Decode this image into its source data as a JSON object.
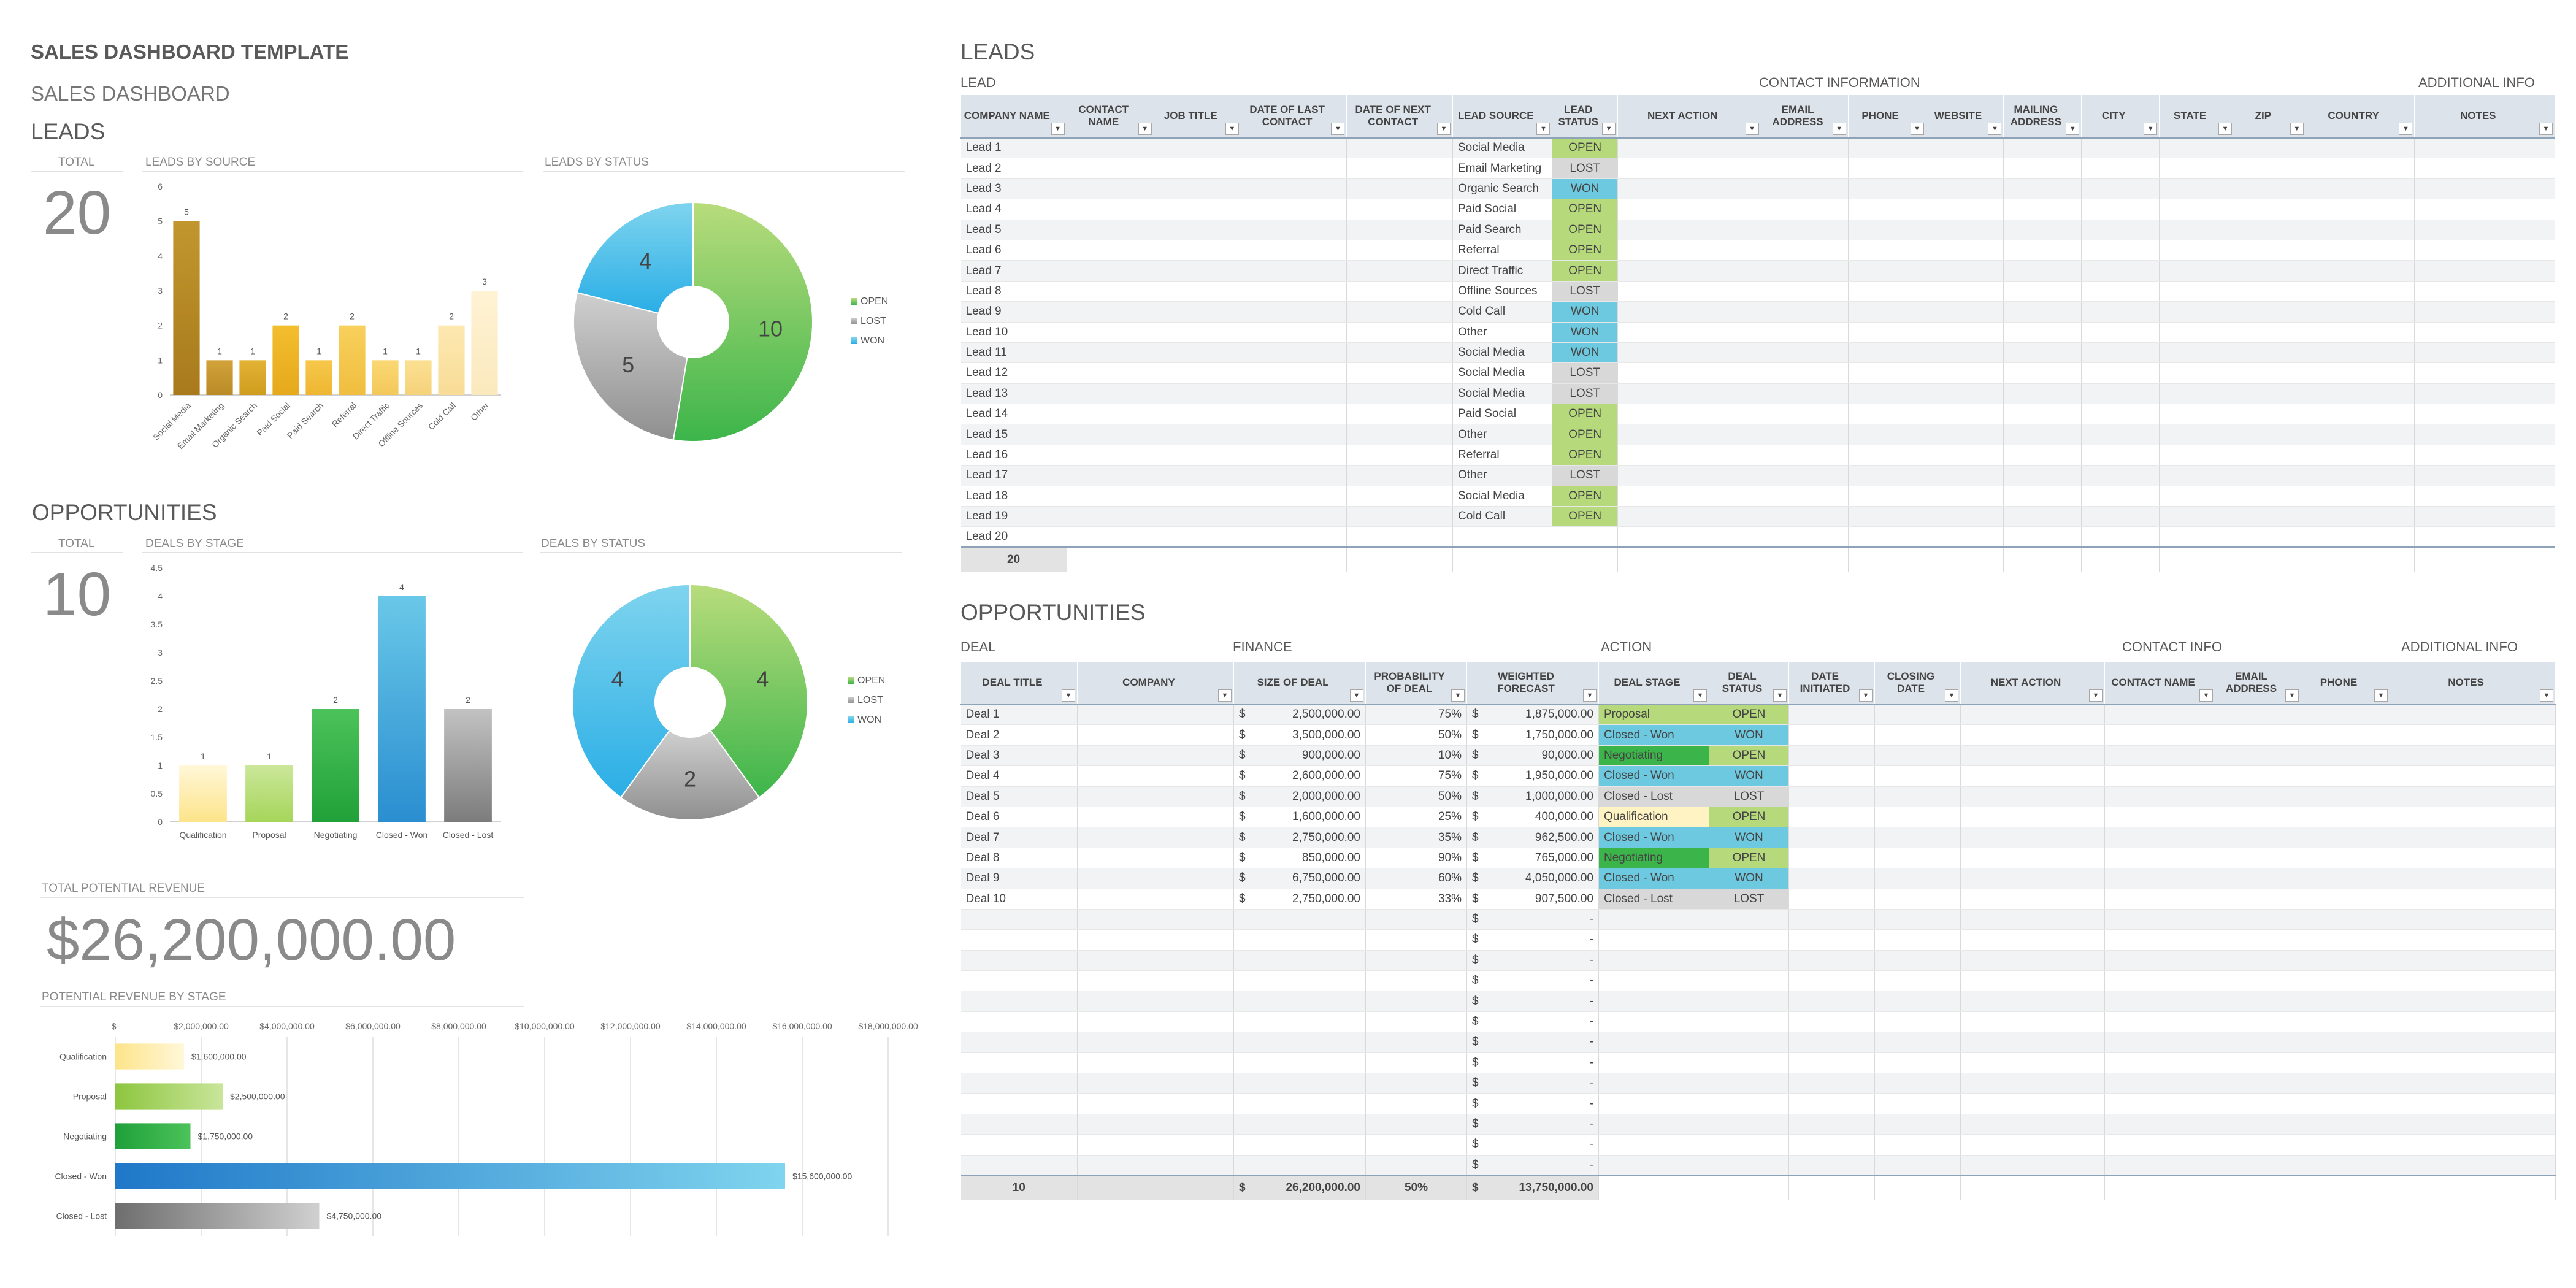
{
  "doc": {
    "title": "SALES DASHBOARD TEMPLATE",
    "subtitle": "SALES DASHBOARD"
  },
  "leads_panel": {
    "heading": "LEADS",
    "total_label": "TOTAL",
    "total": "20",
    "by_source_label": "LEADS BY SOURCE",
    "by_status_label": "LEADS BY STATUS"
  },
  "opps_panel": {
    "heading": "OPPORTUNITIES",
    "total_label": "TOTAL",
    "total": "10",
    "by_stage_label": "DEALS BY STAGE",
    "by_status_label": "DEALS BY STATUS"
  },
  "revenue": {
    "label": "TOTAL POTENTIAL REVENUE",
    "value": "$26,200,000.00",
    "by_stage_label": "POTENTIAL REVENUE BY STAGE"
  },
  "legend": [
    "OPEN",
    "LOST",
    "WON"
  ],
  "colors": {
    "open": "#8dc63f",
    "lost": "#a6a6a6",
    "won": "#3ab7e0",
    "gold": "#b58a2a",
    "header_bg": "#dde3ea"
  },
  "chart_data": [
    {
      "type": "bar",
      "title": "LEADS BY SOURCE",
      "categories": [
        "Social Media",
        "Email Marketing",
        "Organic Search",
        "Paid Social",
        "Paid Search",
        "Referral",
        "Direct Traffic",
        "Offline Sources",
        "Cold Call",
        "Other"
      ],
      "values": [
        5,
        1,
        1,
        2,
        1,
        2,
        1,
        1,
        2,
        3
      ],
      "ylim": [
        0,
        6
      ],
      "yticks": [
        0,
        1,
        2,
        3,
        4,
        5,
        6
      ]
    },
    {
      "type": "pie",
      "title": "LEADS BY STATUS",
      "labels": [
        "OPEN",
        "LOST",
        "WON"
      ],
      "values": [
        10,
        5,
        4
      ]
    },
    {
      "type": "bar",
      "title": "DEALS BY STAGE",
      "categories": [
        "Qualification",
        "Proposal",
        "Negotiating",
        "Closed - Won",
        "Closed - Lost"
      ],
      "values": [
        1,
        1,
        2,
        4,
        2
      ],
      "ylim": [
        0,
        4.5
      ],
      "yticks": [
        0,
        0.5,
        1,
        1.5,
        2,
        2.5,
        3,
        3.5,
        4,
        4.5
      ]
    },
    {
      "type": "pie",
      "title": "DEALS BY STATUS",
      "labels": [
        "OPEN",
        "LOST",
        "WON"
      ],
      "values": [
        4,
        2,
        4
      ]
    },
    {
      "type": "bar",
      "orientation": "horizontal",
      "title": "POTENTIAL REVENUE BY STAGE",
      "categories": [
        "Qualification",
        "Proposal",
        "Negotiating",
        "Closed - Won",
        "Closed - Lost"
      ],
      "values": [
        1600000,
        2500000,
        1750000,
        15600000,
        4750000
      ],
      "value_labels": [
        "$1,600,000.00",
        "$2,500,000.00",
        "$1,750,000.00",
        "$15,600,000.00",
        "$4,750,000.00"
      ],
      "xlim": [
        0,
        18000000
      ],
      "xticks": [
        "$-",
        "$2,000,000.00",
        "$4,000,000.00",
        "$6,000,000.00",
        "$8,000,000.00",
        "$10,000,000.00",
        "$12,000,000.00",
        "$14,000,000.00",
        "$16,000,000.00",
        "$18,000,000.00"
      ]
    }
  ],
  "leads_table": {
    "title": "LEADS",
    "groups": [
      "LEAD",
      "CONTACT INFORMATION",
      "ADDITIONAL INFO"
    ],
    "columns": [
      "COMPANY NAME",
      "CONTACT NAME",
      "JOB TITLE",
      "DATE OF LAST CONTACT",
      "DATE OF NEXT CONTACT",
      "LEAD SOURCE",
      "LEAD STATUS",
      "NEXT ACTION",
      "EMAIL ADDRESS",
      "PHONE",
      "WEBSITE",
      "MAILING ADDRESS",
      "CITY",
      "STATE",
      "ZIP",
      "COUNTRY",
      "NOTES"
    ],
    "rows": [
      [
        "Lead 1",
        "Social Media",
        "OPEN"
      ],
      [
        "Lead 2",
        "Email Marketing",
        "LOST"
      ],
      [
        "Lead 3",
        "Organic Search",
        "WON"
      ],
      [
        "Lead 4",
        "Paid Social",
        "OPEN"
      ],
      [
        "Lead 5",
        "Paid Search",
        "OPEN"
      ],
      [
        "Lead 6",
        "Referral",
        "OPEN"
      ],
      [
        "Lead 7",
        "Direct Traffic",
        "OPEN"
      ],
      [
        "Lead 8",
        "Offline Sources",
        "LOST"
      ],
      [
        "Lead 9",
        "Cold Call",
        "WON"
      ],
      [
        "Lead 10",
        "Other",
        "WON"
      ],
      [
        "Lead 11",
        "Social Media",
        "WON"
      ],
      [
        "Lead 12",
        "Social Media",
        "LOST"
      ],
      [
        "Lead 13",
        "Social Media",
        "LOST"
      ],
      [
        "Lead 14",
        "Paid Social",
        "OPEN"
      ],
      [
        "Lead 15",
        "Other",
        "OPEN"
      ],
      [
        "Lead 16",
        "Referral",
        "OPEN"
      ],
      [
        "Lead 17",
        "Other",
        "LOST"
      ],
      [
        "Lead 18",
        "Social Media",
        "OPEN"
      ],
      [
        "Lead 19",
        "Cold Call",
        "OPEN"
      ],
      [
        "Lead 20",
        "",
        ""
      ]
    ],
    "total": "20"
  },
  "opps_table": {
    "title": "OPPORTUNITIES",
    "groups": [
      "DEAL",
      "FINANCE",
      "ACTION",
      "CONTACT INFO",
      "ADDITIONAL INFO"
    ],
    "columns": [
      "DEAL TITLE",
      "COMPANY",
      "SIZE OF DEAL",
      "PROBABILITY OF DEAL",
      "WEIGHTED FORECAST",
      "DEAL STAGE",
      "DEAL STATUS",
      "DATE INITIATED",
      "CLOSING DATE",
      "NEXT ACTION",
      "CONTACT NAME",
      "EMAIL ADDRESS",
      "PHONE",
      "NOTES"
    ],
    "rows": [
      [
        "Deal 1",
        "2,500,000.00",
        "75%",
        "1,875,000.00",
        "Proposal",
        "OPEN"
      ],
      [
        "Deal 2",
        "3,500,000.00",
        "50%",
        "1,750,000.00",
        "Closed - Won",
        "WON"
      ],
      [
        "Deal 3",
        "900,000.00",
        "10%",
        "90,000.00",
        "Negotiating",
        "OPEN"
      ],
      [
        "Deal 4",
        "2,600,000.00",
        "75%",
        "1,950,000.00",
        "Closed - Won",
        "WON"
      ],
      [
        "Deal 5",
        "2,000,000.00",
        "50%",
        "1,000,000.00",
        "Closed - Lost",
        "LOST"
      ],
      [
        "Deal 6",
        "1,600,000.00",
        "25%",
        "400,000.00",
        "Qualification",
        "OPEN"
      ],
      [
        "Deal 7",
        "2,750,000.00",
        "35%",
        "962,500.00",
        "Closed - Won",
        "WON"
      ],
      [
        "Deal 8",
        "850,000.00",
        "90%",
        "765,000.00",
        "Negotiating",
        "OPEN"
      ],
      [
        "Deal 9",
        "6,750,000.00",
        "60%",
        "4,050,000.00",
        "Closed - Won",
        "WON"
      ],
      [
        "Deal 10",
        "2,750,000.00",
        "33%",
        "907,500.00",
        "Closed - Lost",
        "LOST"
      ]
    ],
    "empty_rows": 13,
    "currency": "$",
    "dash": "-",
    "totals": {
      "count": "10",
      "size": "26,200,000.00",
      "prob": "50%",
      "forecast": "13,750,000.00"
    }
  }
}
